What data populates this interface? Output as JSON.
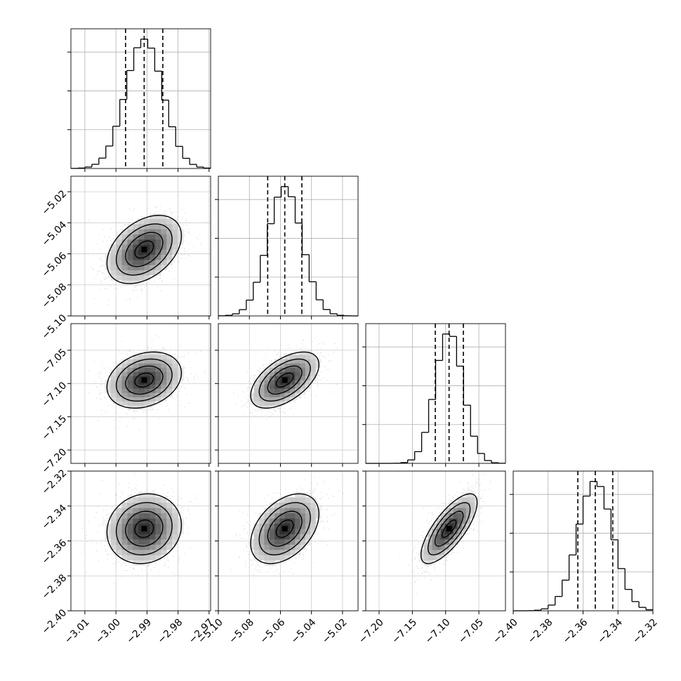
{
  "figure": {
    "background": "#ffffff",
    "line_color": "#000000",
    "grid_color": "#b0b0b0"
  },
  "chart_data": {
    "type": "corner",
    "parameters": [
      {
        "index": 0,
        "range": [
          -3.0145,
          -2.9695
        ],
        "ticks": [
          -3.01,
          -3.0,
          -2.99,
          -2.98,
          -2.97
        ],
        "tick_labels": [
          "−3.01",
          "−3.00",
          "−2.99",
          "−2.98",
          "−2.97"
        ],
        "median": -2.9909,
        "q16": -2.9969,
        "q84": -2.9849,
        "sigma": 0.006
      },
      {
        "index": 1,
        "range": [
          -5.1,
          -5.01
        ],
        "ticks": [
          -5.1,
          -5.08,
          -5.06,
          -5.04,
          -5.02
        ],
        "tick_labels": [
          "−5.10",
          "−5.08",
          "−5.06",
          "−5.04",
          "−5.02"
        ],
        "median": -5.0572,
        "q16": -5.0682,
        "q84": -5.0462,
        "sigma": 0.011
      },
      {
        "index": 2,
        "range": [
          -7.22,
          -7.01
        ],
        "ticks": [
          -7.2,
          -7.15,
          -7.1,
          -7.05
        ],
        "tick_labels": [
          "−7.20",
          "−7.15",
          "−7.10",
          "−7.05"
        ],
        "median": -7.0948,
        "q16": -7.1155,
        "q84": -7.0733,
        "sigma": 0.0211
      },
      {
        "index": 3,
        "range": [
          -2.4,
          -2.32
        ],
        "ticks": [
          -2.4,
          -2.38,
          -2.36,
          -2.34,
          -2.32
        ],
        "tick_labels": [
          "−2.40",
          "−2.38",
          "−2.36",
          "−2.34",
          "−2.32"
        ],
        "median": -2.353,
        "q16": -2.363,
        "q84": -2.343,
        "sigma": 0.01
      }
    ],
    "correlations": [
      {
        "pair": [
          0,
          1
        ],
        "rho": 0.4
      },
      {
        "pair": [
          0,
          2
        ],
        "rho": 0.25
      },
      {
        "pair": [
          0,
          3
        ],
        "rho": 0.1
      },
      {
        "pair": [
          1,
          2
        ],
        "rho": 0.55
      },
      {
        "pair": [
          1,
          3
        ],
        "rho": 0.42
      },
      {
        "pair": [
          2,
          3
        ],
        "rho": 0.75
      }
    ],
    "quantile_line_style": "dashed",
    "contour_levels_sigma": [
      0.5,
      1.0,
      1.5,
      2.0
    ],
    "grid": true,
    "histogram_bins": 20
  }
}
